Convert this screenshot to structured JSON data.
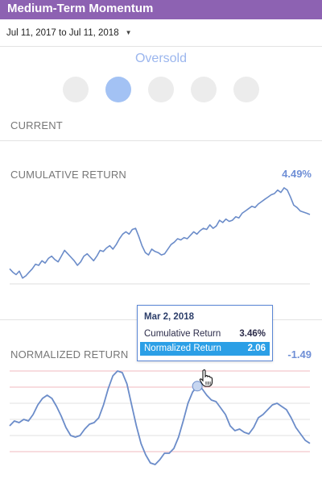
{
  "header": {
    "title": "Medium-Term Momentum"
  },
  "date_range": {
    "label": "Jul 11, 2017 to Jul 11, 2018",
    "caret_icon": "caret-down-icon"
  },
  "status": {
    "label": "Oversold",
    "dots_total": 5,
    "active_index": 1,
    "active_color": "#a3c2f4",
    "inactive_color": "#ececec"
  },
  "current": {
    "label": "CURRENT"
  },
  "cumulative": {
    "label": "CUMULATIVE RETURN",
    "value": "4.49%",
    "line_color": "#6b8cc9"
  },
  "normalized": {
    "label": "NORMALIZED RETURN",
    "value": "-1.49",
    "line_color": "#6b8cc9",
    "band_color": "#f2b8bf"
  },
  "tooltip": {
    "date": "Mar 2, 2018",
    "rows": [
      {
        "label": "Cumulative Return",
        "value": "3.46%",
        "selected": false
      },
      {
        "label": "Normalized Return",
        "value": "2.06",
        "selected": true
      }
    ]
  },
  "chart_data": [
    {
      "type": "line",
      "title": "CUMULATIVE RETURN",
      "series": [
        {
          "name": "",
          "values": [
            -0.2,
            -0.5,
            -0.7,
            -0.4,
            -1.0,
            -0.8,
            -0.5,
            -0.2,
            0.2,
            0.1,
            0.5,
            0.3,
            0.7,
            0.9,
            0.6,
            0.4,
            0.9,
            1.4,
            1.1,
            0.8,
            0.5,
            0.1,
            0.4,
            0.9,
            1.1,
            0.8,
            0.5,
            0.9,
            1.4,
            1.3,
            1.6,
            1.8,
            1.5,
            1.9,
            2.4,
            2.8,
            3.0,
            2.8,
            3.2,
            3.3,
            2.6,
            1.8,
            1.2,
            1.0,
            1.5,
            1.3,
            1.2,
            1.0,
            1.1,
            1.5,
            1.9,
            2.1,
            2.4,
            2.3,
            2.5,
            2.4,
            2.7,
            3.0,
            2.8,
            3.1,
            3.3,
            3.2,
            3.6,
            3.3,
            3.5,
            4.0,
            3.8,
            4.1,
            3.9,
            4.0,
            4.3,
            4.2,
            4.6,
            4.8,
            5.0,
            5.2,
            5.1,
            5.4,
            5.6,
            5.8,
            6.0,
            6.2,
            6.3,
            6.6,
            6.4,
            6.8,
            6.6,
            6.0,
            5.3,
            5.1,
            4.8,
            4.7,
            4.6,
            4.49
          ]
        }
      ]
    },
    {
      "type": "line",
      "title": "NORMALIZED RETURN",
      "ylim": [
        -3,
        3
      ],
      "series": [
        {
          "name": "",
          "values": [
            -0.4,
            -0.1,
            -0.2,
            0.0,
            -0.1,
            0.3,
            0.9,
            1.3,
            1.5,
            1.3,
            0.8,
            0.2,
            -0.5,
            -1.0,
            -1.1,
            -1.0,
            -0.6,
            -0.3,
            -0.2,
            0.1,
            0.9,
            1.9,
            2.7,
            3.0,
            2.9,
            2.2,
            0.9,
            -0.4,
            -1.5,
            -2.2,
            -2.7,
            -2.8,
            -2.5,
            -2.1,
            -2.1,
            -1.8,
            -1.1,
            -0.1,
            1.0,
            1.7,
            2.06,
            1.9,
            1.5,
            1.2,
            1.1,
            0.7,
            0.3,
            -0.4,
            -0.7,
            -0.6,
            -0.8,
            -0.9,
            -0.5,
            0.1,
            0.3,
            0.6,
            0.9,
            1.0,
            0.8,
            0.6,
            0.1,
            -0.5,
            -0.9,
            -1.3,
            -1.49
          ]
        }
      ]
    }
  ]
}
